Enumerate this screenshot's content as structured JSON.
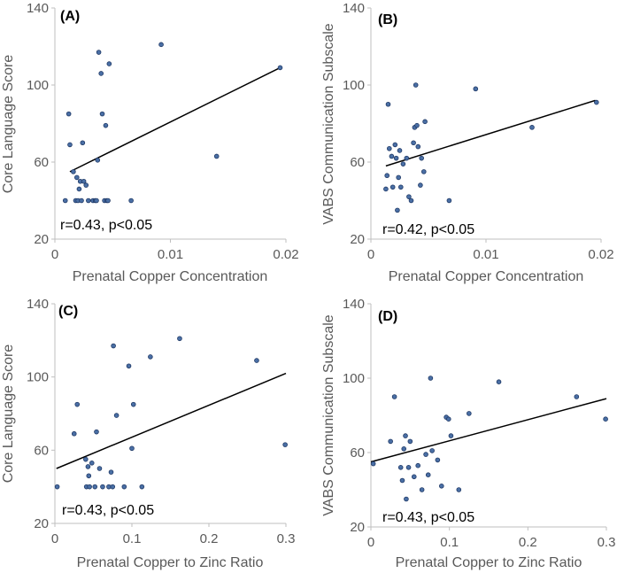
{
  "colors": {
    "point_fill": "#4a6fa5",
    "point_stroke": "#1f3864",
    "trend": "#000000",
    "axis": "#bfbfbf",
    "text": "#595959"
  },
  "chart_data": [
    {
      "type": "scatter",
      "panel": "(A)",
      "xlabel": "Prenatal Copper Concentration",
      "ylabel": "Core Language Score",
      "xlim": [
        0,
        0.02
      ],
      "ylim": [
        20,
        140
      ],
      "xticks": [
        0,
        0.01,
        0.02
      ],
      "xtick_labels": [
        "0",
        "0.01",
        "0.02"
      ],
      "yticks": [
        20,
        60,
        100,
        140
      ],
      "ytick_labels": [
        "20",
        "60",
        "100",
        "140"
      ],
      "annotation": "r=0.43, p<0.05",
      "trendline": [
        [
          0.0013,
          55
        ],
        [
          0.0195,
          109
        ]
      ],
      "points": [
        [
          0.0009,
          40
        ],
        [
          0.0012,
          85
        ],
        [
          0.0013,
          69
        ],
        [
          0.0016,
          55
        ],
        [
          0.0018,
          40
        ],
        [
          0.0019,
          52
        ],
        [
          0.002,
          40
        ],
        [
          0.0021,
          46
        ],
        [
          0.0022,
          50
        ],
        [
          0.0023,
          40
        ],
        [
          0.0024,
          70
        ],
        [
          0.0025,
          50
        ],
        [
          0.0027,
          48
        ],
        [
          0.0029,
          40
        ],
        [
          0.0033,
          40
        ],
        [
          0.0035,
          40
        ],
        [
          0.0036,
          40
        ],
        [
          0.0037,
          61
        ],
        [
          0.0038,
          117
        ],
        [
          0.004,
          106
        ],
        [
          0.0041,
          85
        ],
        [
          0.0043,
          40
        ],
        [
          0.0044,
          79
        ],
        [
          0.0045,
          40
        ],
        [
          0.0046,
          40
        ],
        [
          0.0047,
          111
        ],
        [
          0.0066,
          40
        ],
        [
          0.0092,
          121
        ],
        [
          0.014,
          63
        ],
        [
          0.0195,
          109
        ]
      ]
    },
    {
      "type": "scatter",
      "panel": "(B)",
      "xlabel": "Prenatal Copper Concentration",
      "ylabel": "VABS Communication Subscale",
      "xlim": [
        0,
        0.02
      ],
      "ylim": [
        20,
        140
      ],
      "xticks": [
        0,
        0.01,
        0.02
      ],
      "xtick_labels": [
        "0",
        "0.01",
        "0.02"
      ],
      "yticks": [
        20,
        60,
        100,
        140
      ],
      "ytick_labels": [
        "20",
        "60",
        "100",
        "140"
      ],
      "annotation": "r=0.42, p<0.05",
      "trendline": [
        [
          0.0013,
          58
        ],
        [
          0.0195,
          92
        ]
      ],
      "points": [
        [
          0.0013,
          46
        ],
        [
          0.0014,
          53
        ],
        [
          0.0015,
          90
        ],
        [
          0.0016,
          67
        ],
        [
          0.0018,
          63
        ],
        [
          0.0019,
          47
        ],
        [
          0.0021,
          69
        ],
        [
          0.0022,
          62
        ],
        [
          0.0023,
          35
        ],
        [
          0.0024,
          52
        ],
        [
          0.0025,
          66
        ],
        [
          0.0026,
          47
        ],
        [
          0.0028,
          59
        ],
        [
          0.0031,
          62
        ],
        [
          0.0033,
          42
        ],
        [
          0.0035,
          40
        ],
        [
          0.0037,
          70
        ],
        [
          0.0038,
          78
        ],
        [
          0.0039,
          100
        ],
        [
          0.004,
          79
        ],
        [
          0.0041,
          68
        ],
        [
          0.0043,
          48
        ],
        [
          0.0044,
          62
        ],
        [
          0.0046,
          55
        ],
        [
          0.0047,
          81
        ],
        [
          0.0068,
          40
        ],
        [
          0.0091,
          98
        ],
        [
          0.014,
          78
        ],
        [
          0.0196,
          91
        ]
      ]
    },
    {
      "type": "scatter",
      "panel": "(C)",
      "xlabel": "Prenatal Copper to Zinc Ratio",
      "ylabel": "Core Language Score",
      "xlim": [
        0,
        0.3
      ],
      "ylim": [
        20,
        140
      ],
      "xticks": [
        0,
        0.1,
        0.2,
        0.3
      ],
      "xtick_labels": [
        "0",
        "0.1",
        "0.2",
        "0.3"
      ],
      "yticks": [
        20,
        60,
        100,
        140
      ],
      "ytick_labels": [
        "20",
        "60",
        "100",
        "140"
      ],
      "annotation": "r=0.43, p<0.05",
      "trendline": [
        [
          0.002,
          50
        ],
        [
          0.3,
          102
        ]
      ],
      "points": [
        [
          0.003,
          40
        ],
        [
          0.025,
          69
        ],
        [
          0.029,
          85
        ],
        [
          0.04,
          55
        ],
        [
          0.041,
          40
        ],
        [
          0.043,
          51
        ],
        [
          0.044,
          46
        ],
        [
          0.045,
          40
        ],
        [
          0.048,
          53
        ],
        [
          0.052,
          40
        ],
        [
          0.054,
          70
        ],
        [
          0.058,
          50
        ],
        [
          0.062,
          40
        ],
        [
          0.07,
          40
        ],
        [
          0.073,
          48
        ],
        [
          0.075,
          40
        ],
        [
          0.076,
          117
        ],
        [
          0.08,
          79
        ],
        [
          0.09,
          40
        ],
        [
          0.096,
          106
        ],
        [
          0.1,
          61
        ],
        [
          0.102,
          85
        ],
        [
          0.113,
          40
        ],
        [
          0.124,
          111
        ],
        [
          0.162,
          121
        ],
        [
          0.262,
          109
        ],
        [
          0.299,
          63
        ]
      ]
    },
    {
      "type": "scatter",
      "panel": "(D)",
      "xlabel": "Prenatal Copper to Zinc Ratio",
      "ylabel": "VABS Communication Subscale",
      "xlim": [
        0,
        0.3
      ],
      "ylim": [
        20,
        140
      ],
      "xticks": [
        0,
        0.1,
        0.2,
        0.3
      ],
      "xtick_labels": [
        "0",
        "0.1",
        "0.2",
        "0.3"
      ],
      "yticks": [
        20,
        60,
        100,
        140
      ],
      "ytick_labels": [
        "20",
        "60",
        "100",
        "140"
      ],
      "annotation": "r=0.43, p<0.05",
      "trendline": [
        [
          0.0,
          55
        ],
        [
          0.3,
          89
        ]
      ],
      "points": [
        [
          0.003,
          54
        ],
        [
          0.025,
          66
        ],
        [
          0.03,
          90
        ],
        [
          0.038,
          52
        ],
        [
          0.04,
          45
        ],
        [
          0.042,
          62
        ],
        [
          0.044,
          69
        ],
        [
          0.045,
          35
        ],
        [
          0.048,
          52
        ],
        [
          0.05,
          66
        ],
        [
          0.055,
          47
        ],
        [
          0.06,
          53
        ],
        [
          0.065,
          40
        ],
        [
          0.07,
          59
        ],
        [
          0.073,
          48
        ],
        [
          0.076,
          100
        ],
        [
          0.078,
          61
        ],
        [
          0.085,
          56
        ],
        [
          0.09,
          42
        ],
        [
          0.096,
          79
        ],
        [
          0.099,
          78
        ],
        [
          0.102,
          69
        ],
        [
          0.112,
          40
        ],
        [
          0.125,
          81
        ],
        [
          0.163,
          98
        ],
        [
          0.262,
          90
        ],
        [
          0.299,
          78
        ]
      ]
    }
  ]
}
